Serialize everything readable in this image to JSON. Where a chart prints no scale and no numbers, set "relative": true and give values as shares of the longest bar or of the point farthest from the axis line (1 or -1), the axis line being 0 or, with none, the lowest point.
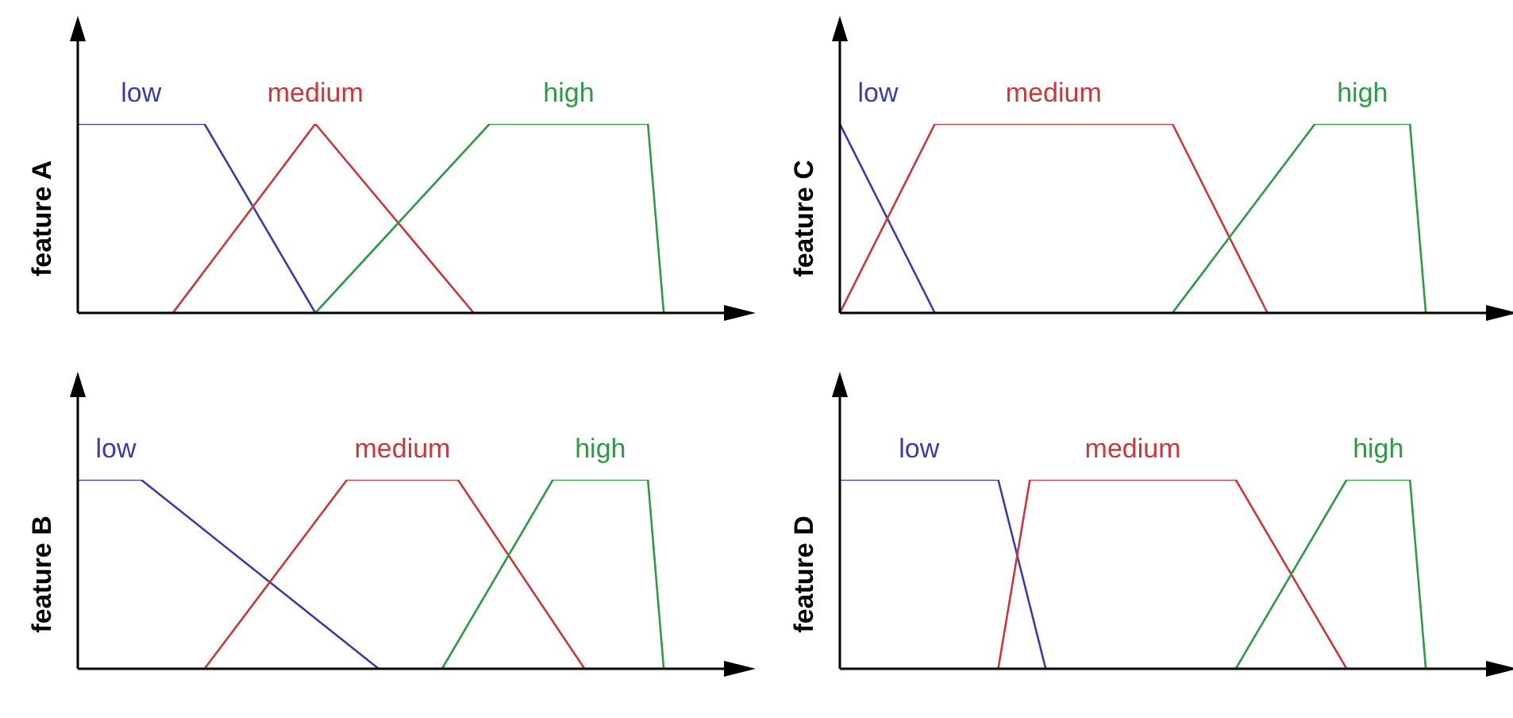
{
  "chart_data": [
    {
      "type": "line",
      "ylabel": "feature A",
      "relative": true,
      "legend": false,
      "categories": [
        null,
        null,
        null,
        null,
        null,
        null,
        null,
        null,
        null,
        null,
        null,
        null,
        null,
        null,
        null,
        null,
        null,
        null,
        null,
        null,
        null,
        null,
        null,
        null,
        null,
        null,
        null,
        null,
        null,
        null,
        null,
        null,
        null,
        null,
        null,
        null,
        null,
        null,
        null,
        null,
        null
      ],
      "series": [
        {
          "name": "low",
          "color": "#3a3ea0",
          "values": [
            1,
            null,
            null,
            null,
            null,
            null,
            null,
            null,
            1,
            null,
            null,
            null,
            null,
            null,
            null,
            0,
            null,
            null,
            null,
            null,
            null,
            null,
            null,
            null,
            null,
            null,
            null,
            null,
            null,
            null,
            null,
            null,
            null,
            null,
            null,
            null,
            null,
            null,
            null,
            null,
            null
          ]
        },
        {
          "name": "medium",
          "color": "#c8383c",
          "values": [
            null,
            null,
            null,
            null,
            null,
            null,
            0,
            null,
            null,
            null,
            null,
            null,
            null,
            null,
            null,
            1,
            null,
            null,
            null,
            null,
            null,
            null,
            null,
            null,
            null,
            0,
            null,
            null,
            null,
            null,
            null,
            null,
            null,
            null,
            null,
            null,
            null,
            null,
            null,
            null,
            null
          ]
        },
        {
          "name": "high",
          "color": "#2e9a48",
          "values": [
            null,
            null,
            null,
            null,
            null,
            null,
            null,
            null,
            null,
            null,
            null,
            null,
            null,
            null,
            null,
            0,
            null,
            null,
            null,
            null,
            null,
            null,
            null,
            null,
            null,
            null,
            1,
            null,
            null,
            null,
            null,
            null,
            null,
            null,
            null,
            null,
            1,
            0,
            null,
            null,
            null
          ]
        }
      ]
    },
    {
      "type": "line",
      "ylabel": "feature C",
      "relative": true,
      "legend": false,
      "categories": [
        null,
        null,
        null,
        null,
        null,
        null,
        null,
        null,
        null,
        null,
        null,
        null,
        null,
        null,
        null,
        null,
        null,
        null,
        null,
        null,
        null,
        null,
        null,
        null,
        null,
        null,
        null,
        null,
        null,
        null,
        null,
        null,
        null,
        null,
        null,
        null,
        null,
        null,
        null,
        null,
        null
      ],
      "series": [
        {
          "name": "low",
          "color": "#3a3ea0",
          "values": [
            1,
            null,
            null,
            null,
            null,
            null,
            0,
            null,
            null,
            null,
            null,
            null,
            null,
            null,
            null,
            null,
            null,
            null,
            null,
            null,
            null,
            null,
            null,
            null,
            null,
            null,
            null,
            null,
            null,
            null,
            null,
            null,
            null,
            null,
            null,
            null,
            null,
            null,
            null,
            null,
            null
          ]
        },
        {
          "name": "medium",
          "color": "#c8383c",
          "values": [
            0,
            null,
            null,
            null,
            null,
            null,
            1,
            null,
            null,
            null,
            null,
            null,
            null,
            null,
            null,
            null,
            null,
            null,
            null,
            null,
            null,
            1,
            null,
            null,
            null,
            null,
            null,
            0,
            null,
            null,
            null,
            null,
            null,
            null,
            null,
            null,
            null,
            null,
            null,
            null,
            null
          ]
        },
        {
          "name": "high",
          "color": "#2e9a48",
          "values": [
            null,
            null,
            null,
            null,
            null,
            null,
            null,
            null,
            null,
            null,
            null,
            null,
            null,
            null,
            null,
            null,
            null,
            null,
            null,
            null,
            null,
            0,
            null,
            null,
            null,
            null,
            null,
            null,
            null,
            null,
            1,
            null,
            null,
            null,
            null,
            null,
            1,
            0,
            null,
            null,
            null
          ]
        }
      ]
    },
    {
      "type": "line",
      "ylabel": "feature B",
      "relative": true,
      "legend": false,
      "categories": [
        null,
        null,
        null,
        null,
        null,
        null,
        null,
        null,
        null,
        null,
        null,
        null,
        null,
        null,
        null,
        null,
        null,
        null,
        null,
        null,
        null,
        null,
        null,
        null,
        null,
        null,
        null,
        null,
        null,
        null,
        null,
        null,
        null,
        null,
        null,
        null,
        null,
        null,
        null,
        null,
        null
      ],
      "series": [
        {
          "name": "low",
          "color": "#3a3ea0",
          "values": [
            1,
            null,
            null,
            null,
            1,
            null,
            null,
            null,
            null,
            null,
            null,
            null,
            null,
            null,
            null,
            null,
            null,
            null,
            null,
            0,
            null,
            null,
            null,
            null,
            null,
            null,
            null,
            null,
            null,
            null,
            null,
            null,
            null,
            null,
            null,
            null,
            null,
            null,
            null,
            null,
            null
          ]
        },
        {
          "name": "medium",
          "color": "#c8383c",
          "values": [
            null,
            null,
            null,
            null,
            null,
            null,
            null,
            null,
            0,
            null,
            null,
            null,
            null,
            null,
            null,
            null,
            null,
            1,
            null,
            null,
            null,
            null,
            null,
            null,
            1,
            null,
            null,
            null,
            null,
            null,
            null,
            null,
            0,
            null,
            null,
            null,
            null,
            null,
            null,
            null,
            null
          ]
        },
        {
          "name": "high",
          "color": "#2e9a48",
          "values": [
            null,
            null,
            null,
            null,
            null,
            null,
            null,
            null,
            null,
            null,
            null,
            null,
            null,
            null,
            null,
            null,
            null,
            null,
            null,
            null,
            null,
            null,
            null,
            0,
            null,
            null,
            null,
            null,
            null,
            null,
            1,
            null,
            null,
            null,
            null,
            null,
            1,
            0,
            null,
            null,
            null
          ]
        }
      ]
    },
    {
      "type": "line",
      "ylabel": "feature D",
      "relative": true,
      "legend": false,
      "categories": [
        null,
        null,
        null,
        null,
        null,
        null,
        null,
        null,
        null,
        null,
        null,
        null,
        null,
        null,
        null,
        null,
        null,
        null,
        null,
        null,
        null,
        null,
        null,
        null,
        null,
        null,
        null,
        null,
        null,
        null,
        null,
        null,
        null,
        null,
        null,
        null,
        null,
        null,
        null,
        null,
        null
      ],
      "series": [
        {
          "name": "low",
          "color": "#3a3ea0",
          "values": [
            1,
            null,
            null,
            null,
            null,
            null,
            null,
            null,
            null,
            null,
            1,
            null,
            null,
            0,
            null,
            null,
            null,
            null,
            null,
            null,
            null,
            null,
            null,
            null,
            null,
            null,
            null,
            null,
            null,
            null,
            null,
            null,
            null,
            null,
            null,
            null,
            null,
            null,
            null,
            null,
            null
          ]
        },
        {
          "name": "medium",
          "color": "#c8383c",
          "values": [
            null,
            null,
            null,
            null,
            null,
            null,
            null,
            null,
            null,
            null,
            0,
            null,
            1,
            null,
            null,
            null,
            null,
            null,
            null,
            null,
            null,
            null,
            null,
            null,
            null,
            1,
            null,
            null,
            null,
            null,
            null,
            null,
            0,
            null,
            null,
            null,
            null,
            null,
            null,
            null,
            null
          ]
        },
        {
          "name": "high",
          "color": "#2e9a48",
          "values": [
            null,
            null,
            null,
            null,
            null,
            null,
            null,
            null,
            null,
            null,
            null,
            null,
            null,
            null,
            null,
            null,
            null,
            null,
            null,
            null,
            null,
            null,
            null,
            null,
            null,
            0,
            null,
            null,
            null,
            null,
            null,
            null,
            1,
            null,
            null,
            null,
            1,
            0,
            null,
            null,
            null
          ]
        }
      ]
    }
  ]
}
